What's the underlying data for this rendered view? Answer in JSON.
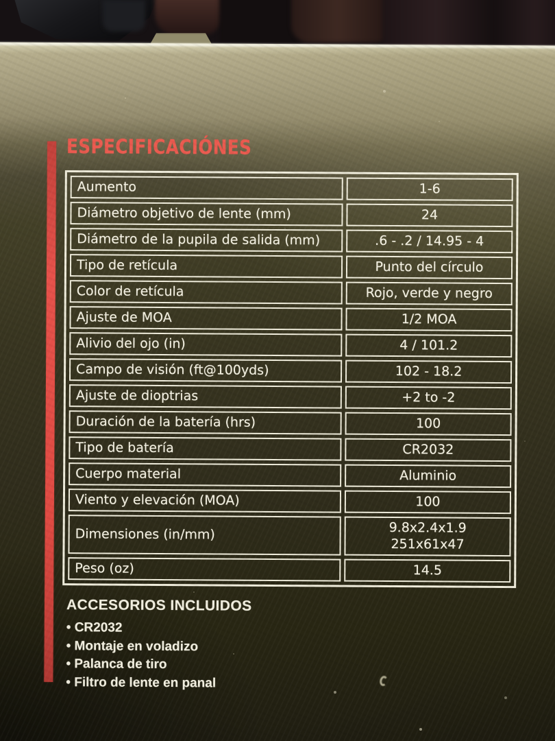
{
  "title": "ESPECIFICACIÓNES",
  "spec_table": {
    "rows": [
      {
        "label": "Aumento",
        "value": "1-6"
      },
      {
        "label": "Diámetro objetivo de lente (mm)",
        "value": "24"
      },
      {
        "label": "Diámetro de la pupila de salida (mm)",
        "value": ".6 - .2 / 14.95 - 4"
      },
      {
        "label": "Tipo de retícula",
        "value": "Punto del círculo"
      },
      {
        "label": "Color de retícula",
        "value": "Rojo, verde y negro"
      },
      {
        "label": "Ajuste de MOA",
        "value": "1/2 MOA"
      },
      {
        "label": "Alivio del ojo (in)",
        "value": "4 / 101.2"
      },
      {
        "label": "Campo de visión (ft@100yds)",
        "value": "102 - 18.2"
      },
      {
        "label": "Ajuste de dioptrias",
        "value": "+2 to -2"
      },
      {
        "label": "Duración de la batería (hrs)",
        "value": "100"
      },
      {
        "label": "Tipo de batería",
        "value": "CR2032"
      },
      {
        "label": "Cuerpo material",
        "value": "Aluminio"
      },
      {
        "label": "Viento y elevación (MOA)",
        "value": "100"
      },
      {
        "label": "Dimensiones (in/mm)",
        "value": "9.8x2.4x1.9\n251x61x47"
      },
      {
        "label": "Peso (oz)",
        "value": "14.5"
      }
    ]
  },
  "accessories": {
    "heading": "ACCESORIOS INCLUIDOS",
    "items": [
      "CR2032",
      "Montaje en voladizo",
      "Palanca de tiro",
      "Filtro de lente en panal"
    ]
  },
  "colors": {
    "accent_red": "#e04a42",
    "table_line": "#efecdb",
    "text": "#f4f1e2",
    "box_olive_dark": "#383520",
    "box_edge_khaki": "#b5ad8c"
  }
}
